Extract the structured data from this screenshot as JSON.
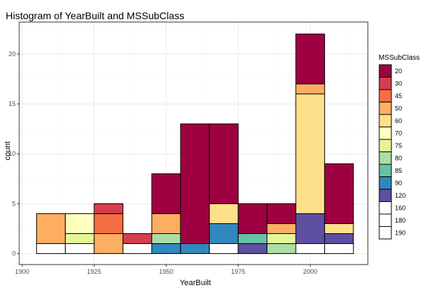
{
  "chart_data": {
    "type": "stacked-histogram",
    "title": "Histogram of YearBuilt and MSSubClass",
    "xlabel": "YearBuilt",
    "ylabel": "count",
    "xlim": [
      1899,
      2020
    ],
    "ylim": [
      -1.1,
      23.2
    ],
    "x_ticks": [
      1900,
      1925,
      1950,
      1975,
      2000
    ],
    "y_ticks": [
      0,
      5,
      10,
      15,
      20
    ],
    "grid": true,
    "legend": {
      "title": "MSSubClass",
      "position": "right",
      "entries": [
        {
          "label": "20",
          "color": "#9E0142"
        },
        {
          "label": "30",
          "color": "#D53E4F"
        },
        {
          "label": "45",
          "color": "#F46D43"
        },
        {
          "label": "50",
          "color": "#FDAE61"
        },
        {
          "label": "60",
          "color": "#FEE08B"
        },
        {
          "label": "70",
          "color": "#FFFFBF"
        },
        {
          "label": "75",
          "color": "#E6F598"
        },
        {
          "label": "80",
          "color": "#ABDDA4"
        },
        {
          "label": "85",
          "color": "#66C2A5"
        },
        {
          "label": "90",
          "color": "#3288BD"
        },
        {
          "label": "120",
          "color": "#5E4FA2"
        },
        {
          "label": "160",
          "color": "#FFFFFF"
        },
        {
          "label": "180",
          "color": "#FFFFFF"
        },
        {
          "label": "190",
          "color": "#FFFFFF"
        }
      ]
    },
    "bins": [
      {
        "x0": 1905,
        "x1": 1915,
        "segments": [
          {
            "class": "190",
            "count": 1
          },
          {
            "class": "50",
            "count": 3
          }
        ]
      },
      {
        "x0": 1915,
        "x1": 1925,
        "segments": [
          {
            "class": "190",
            "count": 1
          },
          {
            "class": "75",
            "count": 1
          },
          {
            "class": "70",
            "count": 2
          }
        ]
      },
      {
        "x0": 1925,
        "x1": 1935,
        "segments": [
          {
            "class": "50",
            "count": 2
          },
          {
            "class": "45",
            "count": 2
          },
          {
            "class": "30",
            "count": 1
          }
        ]
      },
      {
        "x0": 1935,
        "x1": 1945,
        "segments": [
          {
            "class": "190",
            "count": 1
          },
          {
            "class": "30",
            "count": 1
          }
        ]
      },
      {
        "x0": 1945,
        "x1": 1955,
        "segments": [
          {
            "class": "90",
            "count": 1
          },
          {
            "class": "80",
            "count": 1
          },
          {
            "class": "50",
            "count": 2
          },
          {
            "class": "20",
            "count": 4
          }
        ]
      },
      {
        "x0": 1955,
        "x1": 1965,
        "segments": [
          {
            "class": "90",
            "count": 1
          },
          {
            "class": "20",
            "count": 12
          }
        ]
      },
      {
        "x0": 1965,
        "x1": 1975,
        "segments": [
          {
            "class": "190",
            "count": 1
          },
          {
            "class": "90",
            "count": 2
          },
          {
            "class": "60",
            "count": 2
          },
          {
            "class": "20",
            "count": 8
          }
        ]
      },
      {
        "x0": 1975,
        "x1": 1985,
        "segments": [
          {
            "class": "120",
            "count": 1
          },
          {
            "class": "85",
            "count": 1
          },
          {
            "class": "20",
            "count": 3
          }
        ]
      },
      {
        "x0": 1985,
        "x1": 1995,
        "segments": [
          {
            "class": "80",
            "count": 1
          },
          {
            "class": "75",
            "count": 1
          },
          {
            "class": "50",
            "count": 1
          },
          {
            "class": "20",
            "count": 2
          }
        ]
      },
      {
        "x0": 1995,
        "x1": 2005,
        "segments": [
          {
            "class": "190",
            "count": 1
          },
          {
            "class": "120",
            "count": 3
          },
          {
            "class": "60",
            "count": 12
          },
          {
            "class": "50",
            "count": 1
          },
          {
            "class": "20",
            "count": 5
          }
        ]
      },
      {
        "x0": 2005,
        "x1": 2015,
        "segments": [
          {
            "class": "190",
            "count": 1
          },
          {
            "class": "120",
            "count": 1
          },
          {
            "class": "60",
            "count": 1
          },
          {
            "class": "20",
            "count": 6
          }
        ]
      }
    ]
  }
}
